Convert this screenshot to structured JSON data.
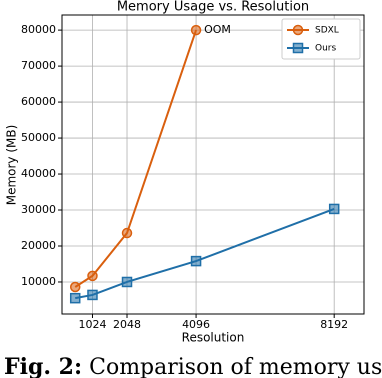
{
  "chart_data": {
    "type": "line",
    "title": "Memory Usage vs. Resolution",
    "xlabel": "Resolution",
    "ylabel": "Memory (MB)",
    "series": [
      {
        "name": "SDXL",
        "color": "#d95f0e",
        "marker": "circle",
        "x": [
          512,
          1024,
          2048,
          4096
        ],
        "values": [
          8600,
          11700,
          23600,
          80000
        ]
      },
      {
        "name": "Ours",
        "color": "#1f6fa8",
        "marker": "square",
        "x": [
          512,
          1024,
          2048,
          4096,
          8192
        ],
        "values": [
          5500,
          6400,
          10000,
          15800,
          30300
        ]
      }
    ],
    "annotation": "OOM",
    "xlim": [
      120,
      9076
    ],
    "xticks": [
      1024,
      2048,
      4096,
      8192
    ],
    "ylim": [
      1100,
      84200
    ],
    "yticks": [
      10000,
      20000,
      30000,
      40000,
      50000,
      60000,
      70000,
      80000
    ],
    "grid": true,
    "legend": "upper right"
  },
  "caption": {
    "label": "Fig. 2:",
    "text": "Comparison of memory us-"
  }
}
